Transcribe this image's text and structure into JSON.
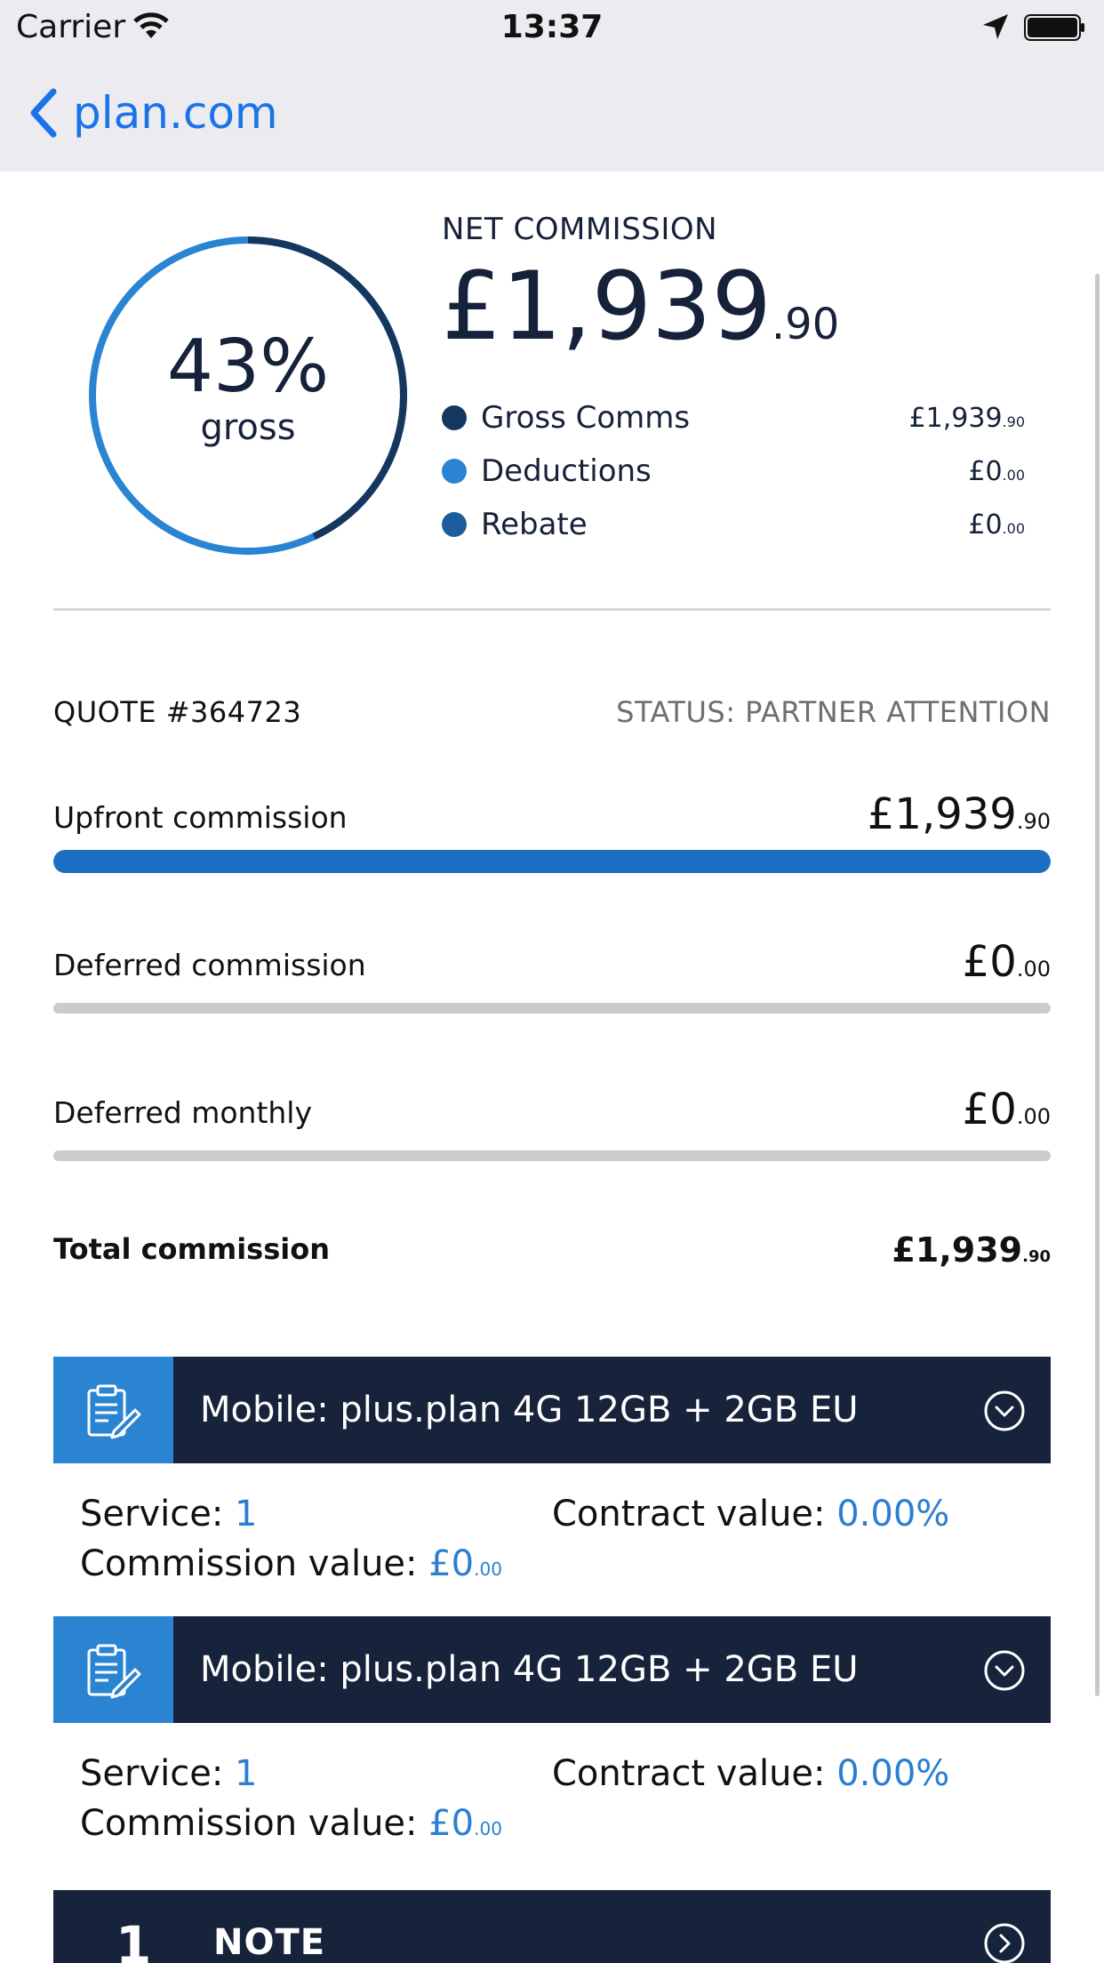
{
  "status_bar": {
    "carrier": "Carrier",
    "time": "13:37"
  },
  "nav": {
    "back_label": "plan.com"
  },
  "summary": {
    "gross_percent": 43,
    "gross_percent_text": "43%",
    "gross_label": "gross",
    "net_label": "NET COMMISSION",
    "net_amount_main": "£1,939",
    "net_amount_dec": ".90",
    "legend": [
      {
        "label": "Gross Comms",
        "value_main": "£1,939",
        "value_dec": ".90",
        "color": "#15365f"
      },
      {
        "label": "Deductions",
        "value_main": "£0",
        "value_dec": ".00",
        "color": "#2a84d2"
      },
      {
        "label": "Rebate",
        "value_main": "£0",
        "value_dec": ".00",
        "color": "#1d5d9b"
      }
    ],
    "ring_colors": {
      "gross": "#15365f",
      "remainder": "#2a84d2"
    }
  },
  "quote": {
    "number": "QUOTE #364723",
    "status": "STATUS: PARTNER ATTENTION",
    "rows": [
      {
        "label": "Upfront commission",
        "value_main": "£1,939",
        "value_dec": ".90",
        "fill": 1.0
      },
      {
        "label": "Deferred commission",
        "value_main": "£0",
        "value_dec": ".00",
        "fill": 0.0
      },
      {
        "label": "Deferred monthly",
        "value_main": "£0",
        "value_dec": ".00",
        "fill": 0.0
      }
    ],
    "total_label": "Total commission",
    "total_main": "£1,939",
    "total_dec": ".90"
  },
  "products": [
    {
      "title": "Mobile: plus.plan 4G 12GB + 2GB EU",
      "service_label": "Service: ",
      "service_value": "1",
      "contract_label": "Contract value: ",
      "contract_value": "0.00%",
      "commission_label": "Commission value: ",
      "commission_main": "£0",
      "commission_dec": ".00"
    },
    {
      "title": "Mobile: plus.plan 4G 12GB + 2GB EU",
      "service_label": "Service: ",
      "service_value": "1",
      "contract_label": "Contract value: ",
      "contract_value": "0.00%",
      "commission_label": "Commission value: ",
      "commission_main": "£0",
      "commission_dec": ".00"
    }
  ],
  "note": {
    "count": "1",
    "label": "NOTE"
  },
  "icons": {
    "back": "chevron-left-icon",
    "product": "clipboard-edit-icon",
    "expand": "chevron-down-circle-icon",
    "note": "chevron-right-circle-icon"
  }
}
